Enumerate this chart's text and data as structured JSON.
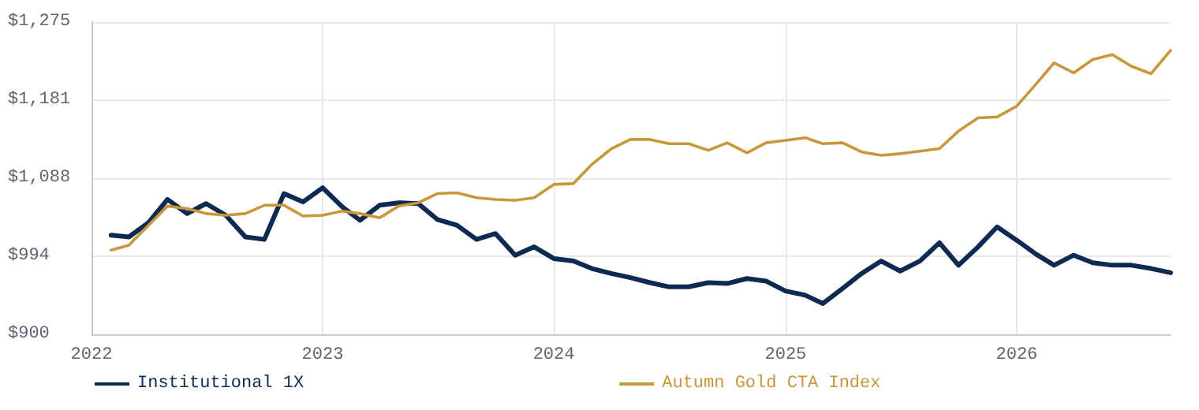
{
  "chart_data": {
    "type": "line",
    "x": [
      "2022-02",
      "2022-03",
      "2022-04",
      "2022-05",
      "2022-06",
      "2022-07",
      "2022-08",
      "2022-09",
      "2022-10",
      "2022-11",
      "2022-12",
      "2023-01",
      "2023-02",
      "2023-03",
      "2023-04",
      "2023-05",
      "2023-06",
      "2023-07",
      "2023-08",
      "2023-09",
      "2023-10",
      "2023-11",
      "2023-12",
      "2024-01",
      "2024-02",
      "2024-03",
      "2024-04",
      "2024-05",
      "2024-06",
      "2024-07",
      "2024-08",
      "2024-09",
      "2024-10",
      "2024-11",
      "2024-12",
      "2025-01",
      "2025-02",
      "2025-03",
      "2025-04",
      "2025-05",
      "2025-06",
      "2025-07",
      "2025-08",
      "2025-09",
      "2025-10",
      "2025-11",
      "2025-12",
      "2026-01",
      "2026-02",
      "2026-03",
      "2026-04",
      "2026-05",
      "2026-06",
      "2026-07",
      "2026-08",
      "2026-09"
    ],
    "series": [
      {
        "name": "Institutional 1X",
        "color": "#0d2b52",
        "values": [
          1019,
          1017,
          1034,
          1062,
          1045,
          1057,
          1043,
          1017,
          1014,
          1069,
          1059,
          1076,
          1053,
          1037,
          1055,
          1058,
          1057,
          1038,
          1031,
          1014,
          1021,
          995,
          1005,
          991,
          988,
          979,
          973,
          968,
          962,
          957,
          957,
          962,
          961,
          967,
          964,
          952,
          947,
          937,
          955,
          973,
          988,
          976,
          988,
          1010,
          983,
          1005,
          1029,
          1013,
          996,
          983,
          995,
          986,
          983,
          983,
          979,
          974
        ]
      },
      {
        "name": "Autumn Gold CTA Index",
        "color": "#c9963a",
        "values": [
          1001,
          1007,
          1031,
          1054,
          1051,
          1045,
          1043,
          1045,
          1055,
          1055,
          1042,
          1043,
          1048,
          1045,
          1040,
          1054,
          1058,
          1069,
          1070,
          1064,
          1062,
          1061,
          1064,
          1080,
          1081,
          1104,
          1123,
          1134,
          1134,
          1129,
          1129,
          1121,
          1130,
          1118,
          1130,
          1133,
          1136,
          1129,
          1130,
          1119,
          1115,
          1117,
          1120,
          1123,
          1144,
          1160,
          1161,
          1174,
          1201,
          1226,
          1214,
          1230,
          1236,
          1222,
          1213,
          1241
        ]
      }
    ],
    "xlim": [
      "2022-01",
      "2026-09"
    ],
    "xticks": [
      "2022",
      "2023",
      "2024",
      "2025",
      "2026"
    ],
    "ylim": [
      900,
      1275
    ],
    "yticks": [
      {
        "value": 900,
        "label": "$900"
      },
      {
        "value": 993.75,
        "label": "$994"
      },
      {
        "value": 1087.5,
        "label": "$1,088"
      },
      {
        "value": 1181.25,
        "label": "$1,181"
      },
      {
        "value": 1275,
        "label": "$1,275"
      }
    ],
    "grid": true,
    "legend": "bottom",
    "marker": "none",
    "line_style": "solid"
  }
}
